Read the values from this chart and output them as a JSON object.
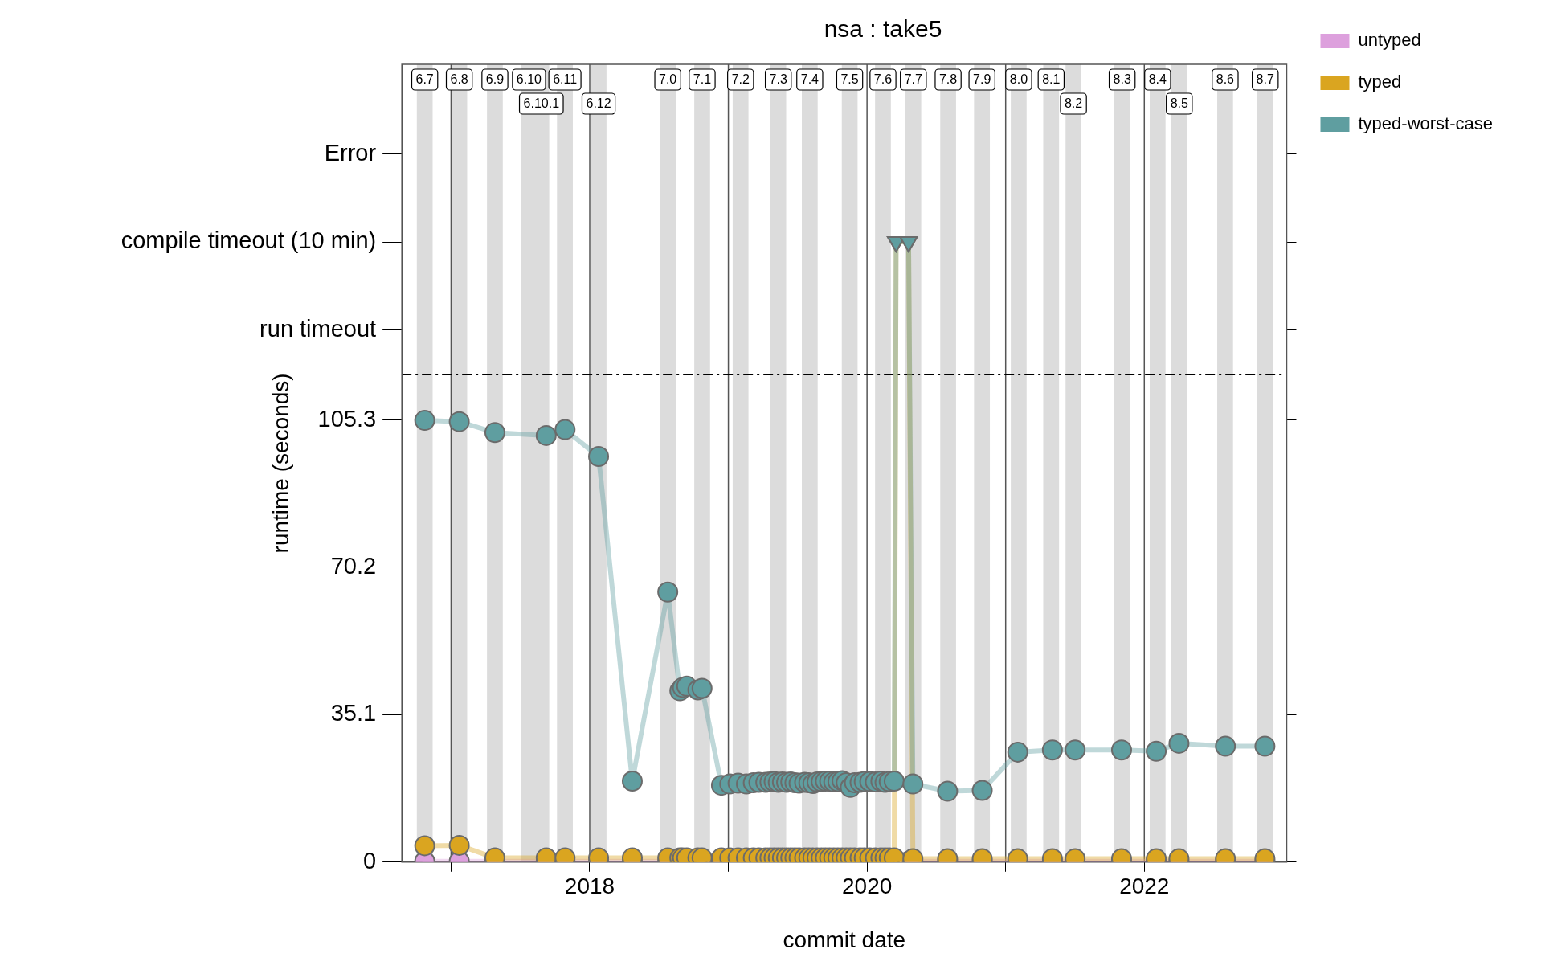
{
  "chart_data": {
    "type": "line",
    "title": "nsa : take5",
    "xlabel": "commit date",
    "ylabel": "runtime (seconds)",
    "x": [
      2016.81,
      2017.059,
      2017.316,
      2017.686,
      2017.822,
      2018.064,
      2018.307,
      2018.563,
      2018.65,
      2018.67,
      2018.7,
      2018.78,
      2018.81,
      2018.95,
      2019.01,
      2019.07,
      2019.13,
      2019.18,
      2019.22,
      2019.27,
      2019.3,
      2019.33,
      2019.36,
      2019.39,
      2019.42,
      2019.45,
      2019.48,
      2019.51,
      2019.55,
      2019.58,
      2019.61,
      2019.64,
      2019.67,
      2019.7,
      2019.73,
      2019.76,
      2019.79,
      2019.82,
      2019.85,
      2019.88,
      2019.91,
      2019.95,
      2019.98,
      2020.02,
      2020.06,
      2020.1,
      2020.13,
      2020.16,
      2020.196,
      2020.21,
      2020.3,
      2020.331,
      2020.581,
      2020.831,
      2021.087,
      2021.337,
      2021.501,
      2021.836,
      2022.086,
      2022.25,
      2022.585,
      2022.87
    ],
    "series": [
      {
        "name": "untyped",
        "color": "#dda0dd",
        "values": [
          0.2,
          0.2,
          0.2,
          0.2,
          0.2,
          0.2,
          0.2,
          0.2,
          0.2,
          0.2,
          0.2,
          0.2,
          0.2,
          0.2,
          0.2,
          0.2,
          0.2,
          0.2,
          0.2,
          0.2,
          0.2,
          0.2,
          0.2,
          0.2,
          0.2,
          0.2,
          0.2,
          0.2,
          0.2,
          0.2,
          0.2,
          0.2,
          0.2,
          0.2,
          0.2,
          0.2,
          0.2,
          0.2,
          0.2,
          0.2,
          0.2,
          0.2,
          0.2,
          0.2,
          0.2,
          0.2,
          0.2,
          0.2,
          0.2,
          0.2,
          0.2,
          0.2,
          0.2,
          0.2,
          0.2,
          0.2,
          0.2,
          0.2,
          0.2,
          0.2,
          0.2,
          0.2
        ]
      },
      {
        "name": "typed",
        "color": "#daa520",
        "values": [
          3.9,
          4.0,
          1,
          1,
          1,
          1,
          1,
          1,
          1,
          1,
          1,
          1,
          1,
          1,
          1,
          1,
          1,
          1,
          1,
          1,
          1,
          1,
          1,
          1,
          1,
          1,
          1,
          1,
          1,
          1,
          1,
          1,
          1,
          1,
          1,
          1,
          1,
          1,
          1,
          1,
          1,
          1,
          1,
          1,
          1,
          1,
          1,
          1,
          1,
          147.7,
          147.7,
          0.8,
          0.8,
          0.8,
          0.8,
          0.8,
          0.8,
          0.8,
          0.8,
          0.8,
          0.8,
          0.8
        ]
      },
      {
        "name": "typed-worst-case",
        "color": "#5f9ea0",
        "values": [
          105.2,
          104.9,
          102.3,
          101.6,
          103.0,
          96.6,
          19.3,
          64.3,
          40.8,
          41.6,
          41.9,
          41.0,
          41.4,
          18.3,
          18.6,
          18.8,
          18.6,
          18.9,
          19.0,
          19.0,
          19.1,
          19.2,
          19.0,
          19.1,
          19.0,
          19.1,
          18.9,
          18.8,
          19.0,
          18.9,
          18.7,
          19.1,
          19.2,
          19.3,
          19.3,
          19.1,
          19.2,
          19.4,
          18.9,
          17.8,
          18.9,
          19.0,
          19.2,
          19.2,
          19.1,
          19.3,
          19.0,
          19.2,
          19.3,
          147.7,
          147.7,
          18.6,
          16.9,
          17.1,
          26.2,
          26.7,
          26.7,
          26.7,
          26.4,
          28.3,
          27.6,
          27.6
        ]
      }
    ],
    "xlim": [
      2016.645,
      2023.027
    ],
    "xticks": [
      {
        "value": 2017,
        "label": null
      },
      2018,
      {
        "value": 2019,
        "label": null
      },
      2020,
      {
        "value": 2021,
        "label": null
      },
      2022
    ],
    "ylim": [
      0,
      190
    ],
    "yticks": [
      0,
      35.1,
      70.2,
      105.3,
      {
        "value": 126.7,
        "label": null
      },
      {
        "value": 147.7,
        "label": null
      },
      {
        "value": 168.6,
        "label": null
      }
    ],
    "annotations": [
      "run timeout",
      "compile timeout (10 min)",
      "Error"
    ],
    "ref_lines": [
      {
        "axis": "y",
        "value": 116.1,
        "color": "#000000",
        "line_style": "dashed"
      }
    ],
    "bands": [
      {
        "axis": "x",
        "from": 2016.753,
        "to": 2016.867,
        "label": "6.7",
        "color": "#dcdcdc"
      },
      {
        "axis": "x",
        "from": 2017.002,
        "to": 2017.116,
        "label": "6.8",
        "color": "#dcdcdc"
      },
      {
        "axis": "x",
        "from": 2017.259,
        "to": 2017.373,
        "label": "6.9",
        "color": "#dcdcdc"
      },
      {
        "axis": "x",
        "from": 2017.505,
        "to": 2017.619,
        "label": "6.10",
        "color": "#dcdcdc"
      },
      {
        "axis": "x",
        "from": 2017.594,
        "to": 2017.708,
        "label": "6.10.1",
        "color": "#dcdcdc"
      },
      {
        "axis": "x",
        "from": 2017.764,
        "to": 2017.878,
        "label": "6.11",
        "color": "#dcdcdc"
      },
      {
        "axis": "x",
        "from": 2018.007,
        "to": 2018.121,
        "label": "6.12",
        "color": "#dcdcdc"
      },
      {
        "axis": "x",
        "from": 2018.506,
        "to": 2018.62,
        "label": "7.0",
        "color": "#dcdcdc"
      },
      {
        "axis": "x",
        "from": 2018.754,
        "to": 2018.868,
        "label": "7.1",
        "color": "#dcdcdc"
      },
      {
        "axis": "x",
        "from": 2019.031,
        "to": 2019.145,
        "label": "7.2",
        "color": "#dcdcdc"
      },
      {
        "axis": "x",
        "from": 2019.303,
        "to": 2019.417,
        "label": "7.3",
        "color": "#dcdcdc"
      },
      {
        "axis": "x",
        "from": 2019.53,
        "to": 2019.644,
        "label": "7.4",
        "color": "#dcdcdc"
      },
      {
        "axis": "x",
        "from": 2019.818,
        "to": 2019.932,
        "label": "7.5",
        "color": "#dcdcdc"
      },
      {
        "axis": "x",
        "from": 2020.058,
        "to": 2020.172,
        "label": "7.6",
        "color": "#dcdcdc"
      },
      {
        "axis": "x",
        "from": 2020.277,
        "to": 2020.391,
        "label": "7.7",
        "color": "#dcdcdc"
      },
      {
        "axis": "x",
        "from": 2020.528,
        "to": 2020.642,
        "label": "7.8",
        "color": "#dcdcdc"
      },
      {
        "axis": "x",
        "from": 2020.772,
        "to": 2020.886,
        "label": "7.9",
        "color": "#dcdcdc"
      },
      {
        "axis": "x",
        "from": 2021.037,
        "to": 2021.151,
        "label": "8.0",
        "color": "#dcdcdc"
      },
      {
        "axis": "x",
        "from": 2021.271,
        "to": 2021.385,
        "label": "8.1",
        "color": "#dcdcdc"
      },
      {
        "axis": "x",
        "from": 2021.432,
        "to": 2021.546,
        "label": "8.2",
        "color": "#dcdcdc"
      },
      {
        "axis": "x",
        "from": 2021.783,
        "to": 2021.897,
        "label": "8.3",
        "color": "#dcdcdc"
      },
      {
        "axis": "x",
        "from": 2022.039,
        "to": 2022.153,
        "label": "8.4",
        "color": "#dcdcdc"
      },
      {
        "axis": "x",
        "from": 2022.195,
        "to": 2022.309,
        "label": "8.5",
        "color": "#dcdcdc"
      },
      {
        "axis": "x",
        "from": 2022.526,
        "to": 2022.64,
        "label": "8.6",
        "color": "#dcdcdc"
      },
      {
        "axis": "x",
        "from": 2022.815,
        "to": 2022.929,
        "label": "8.7",
        "color": "#dcdcdc"
      }
    ],
    "grid": "x",
    "legend": "right",
    "marker": "circle",
    "line_style": "solid"
  }
}
